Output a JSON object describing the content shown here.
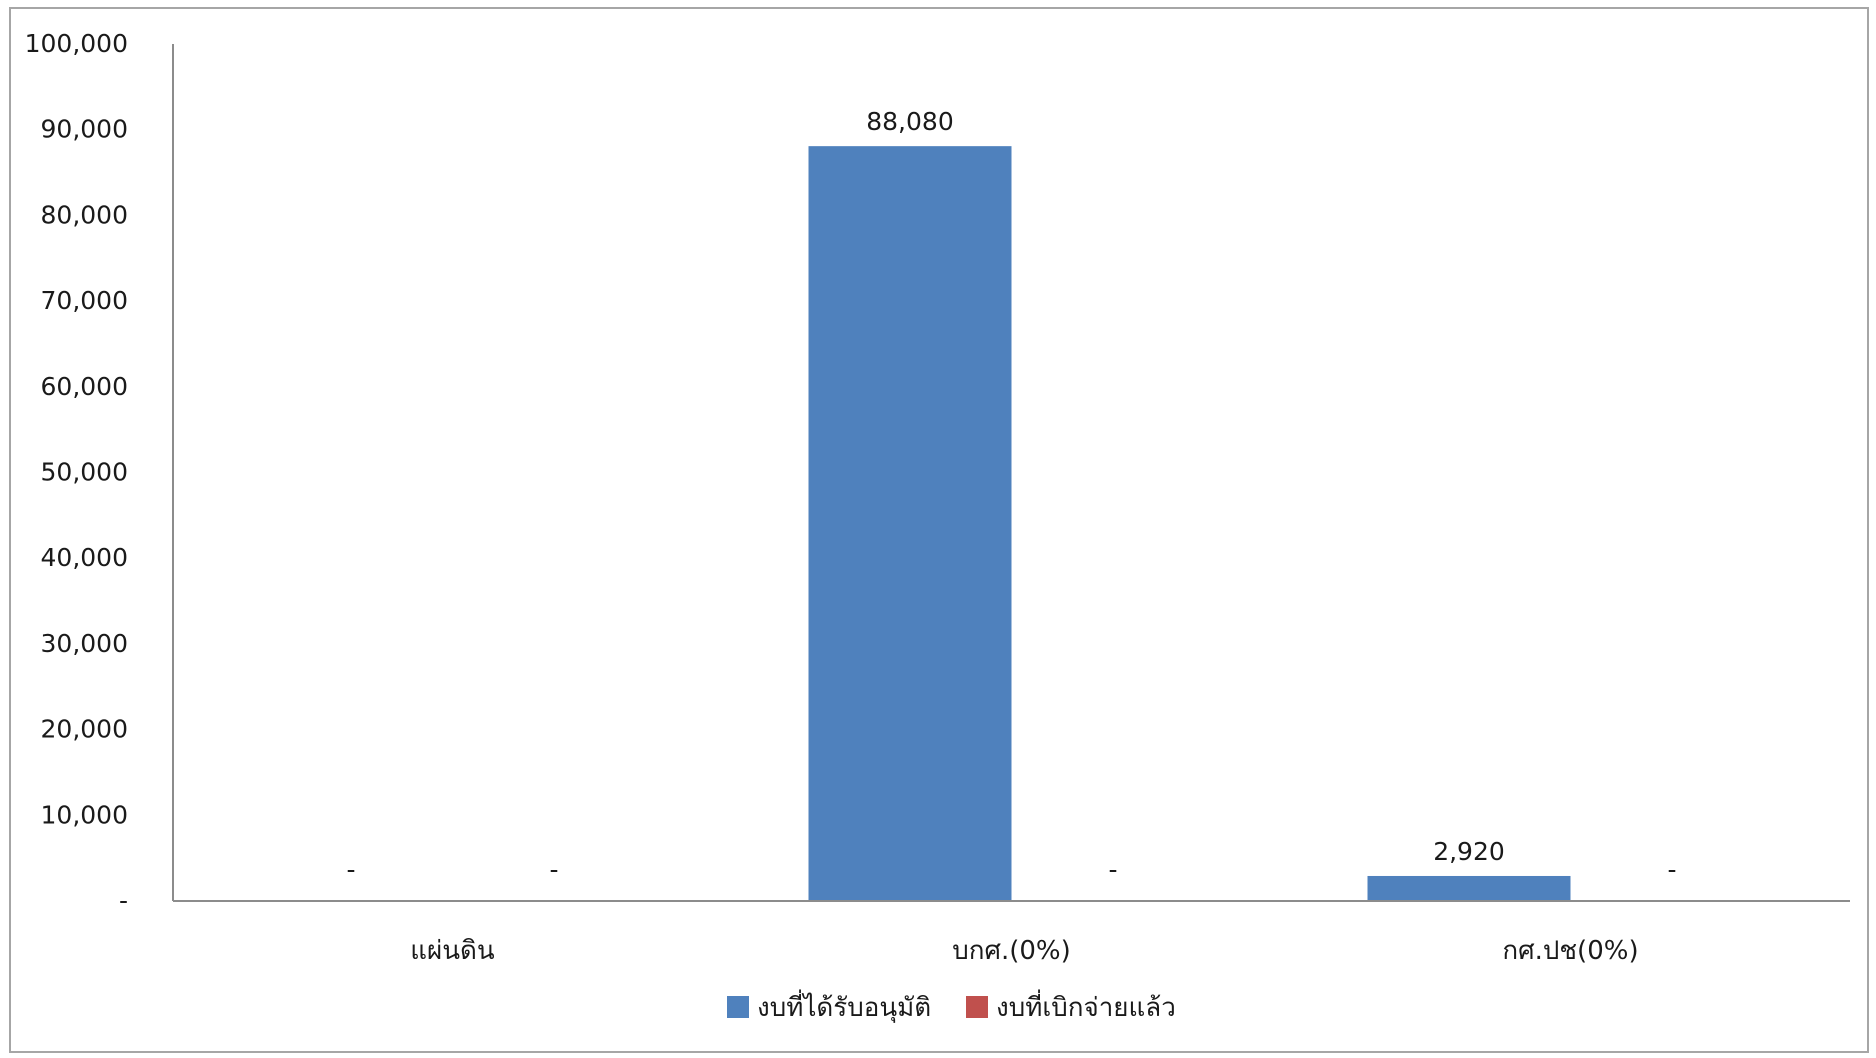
{
  "chart_data": {
    "type": "bar",
    "title": "",
    "xlabel": "",
    "ylabel": "",
    "ylim": [
      0,
      100000
    ],
    "yticks": [
      0,
      10000,
      20000,
      30000,
      40000,
      50000,
      60000,
      70000,
      80000,
      90000,
      100000
    ],
    "ytick_labels": [
      "-",
      "10,000",
      "20,000",
      "30,000",
      "40,000",
      "50,000",
      "60,000",
      "70,000",
      "80,000",
      "90,000",
      "100,000"
    ],
    "categories": [
      "แผ่นดิน",
      "บกศ.(0%)",
      "กศ.ปช(0%)"
    ],
    "series": [
      {
        "name": "งบที่ได้รับอนุมัติ",
        "color": "#4f81bd",
        "values": [
          0,
          88080,
          2920
        ],
        "labels": [
          "-",
          "88,080",
          "2,920"
        ]
      },
      {
        "name": "งบที่เบิกจ่ายแล้ว",
        "color": "#c0504d",
        "values": [
          0,
          0,
          0
        ],
        "labels": [
          "-",
          "-",
          "-"
        ]
      }
    ],
    "grid": false,
    "legend_position": "bottom"
  }
}
